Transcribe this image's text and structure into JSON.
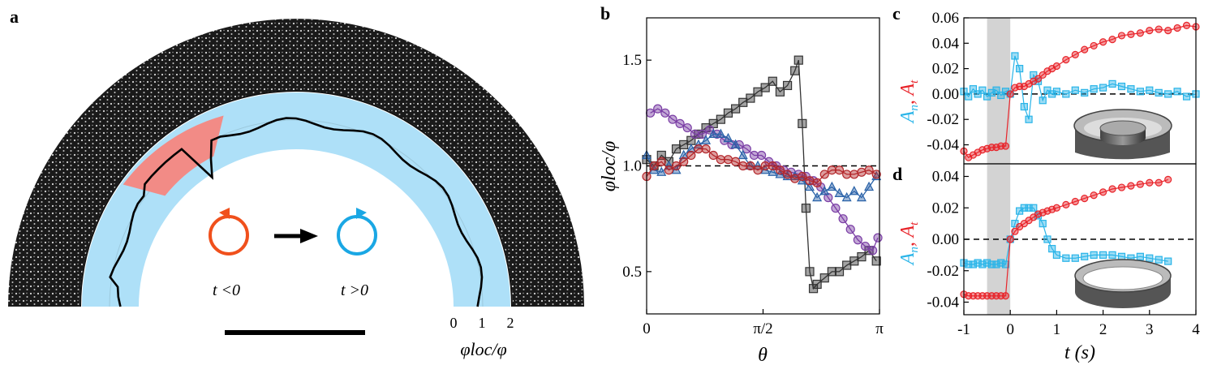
{
  "panel_a": {
    "letter": "a",
    "label_before": "t <0",
    "label_after": "t >0",
    "scale_ticks": [
      "0",
      "1",
      "2"
    ],
    "scale_label": "φloc/φ",
    "colors": {
      "ring_dark": "#111111",
      "band": "#aee0f8",
      "highlight": "#f28b86",
      "ccw": "#f0501c",
      "cw": "#1aa7e4"
    }
  },
  "chart_data": [
    {
      "panel": "b",
      "type": "line",
      "xlabel": "θ",
      "ylabel": "φloc/φ",
      "xlim": [
        0,
        3.1416
      ],
      "ylim": [
        0.3,
        1.7
      ],
      "xticks": [
        {
          "v": 0,
          "label": "0"
        },
        {
          "v": 1.5708,
          "label": "π/2"
        },
        {
          "v": 3.1416,
          "label": "π"
        }
      ],
      "yticks": [
        {
          "v": 0.5,
          "label": "0.5"
        },
        {
          "v": 1.0,
          "label": "1.0"
        },
        {
          "v": 1.5,
          "label": "1.5"
        }
      ],
      "reference_line": 1.0,
      "series": [
        {
          "name": "gray",
          "color": "#333333",
          "marker": "square",
          "x": [
            0,
            0.1,
            0.2,
            0.3,
            0.4,
            0.5,
            0.6,
            0.7,
            0.8,
            0.9,
            1.0,
            1.1,
            1.2,
            1.3,
            1.4,
            1.5,
            1.6,
            1.7,
            1.8,
            1.9,
            2.0,
            2.05,
            2.1,
            2.15,
            2.2,
            2.25,
            2.3,
            2.4,
            2.5,
            2.6,
            2.7,
            2.8,
            2.9,
            3.0,
            3.1
          ],
          "y": [
            1.03,
            1.0,
            1.05,
            1.02,
            1.08,
            1.1,
            1.12,
            1.15,
            1.18,
            1.2,
            1.22,
            1.25,
            1.27,
            1.3,
            1.32,
            1.35,
            1.37,
            1.4,
            1.35,
            1.38,
            1.45,
            1.5,
            1.2,
            0.8,
            0.5,
            0.42,
            0.44,
            0.47,
            0.5,
            0.5,
            0.53,
            0.55,
            0.57,
            0.6,
            0.55
          ]
        },
        {
          "name": "purple",
          "color": "#7b3fa5",
          "marker": "circle",
          "x": [
            0.05,
            0.15,
            0.25,
            0.35,
            0.45,
            0.55,
            0.65,
            0.75,
            0.85,
            0.95,
            1.05,
            1.15,
            1.25,
            1.35,
            1.45,
            1.55,
            1.65,
            1.75,
            1.85,
            1.95,
            2.05,
            2.15,
            2.25,
            2.35,
            2.45,
            2.55,
            2.65,
            2.75,
            2.85,
            2.95,
            3.05,
            3.12
          ],
          "y": [
            1.25,
            1.27,
            1.25,
            1.22,
            1.2,
            1.18,
            1.15,
            1.15,
            1.17,
            1.15,
            1.12,
            1.1,
            1.1,
            1.08,
            1.05,
            1.05,
            1.02,
            1.0,
            0.98,
            0.97,
            0.96,
            0.95,
            0.93,
            0.9,
            0.85,
            0.8,
            0.75,
            0.7,
            0.65,
            0.62,
            0.6,
            0.66
          ]
        },
        {
          "name": "blue",
          "color": "#2a62a8",
          "marker": "triangle",
          "x": [
            0,
            0.1,
            0.2,
            0.3,
            0.4,
            0.5,
            0.6,
            0.7,
            0.8,
            0.9,
            1.0,
            1.1,
            1.2,
            1.3,
            1.4,
            1.5,
            1.6,
            1.7,
            1.8,
            1.9,
            2.0,
            2.1,
            2.2,
            2.3,
            2.4,
            2.5,
            2.6,
            2.7,
            2.8,
            2.9,
            3.0,
            3.1
          ],
          "y": [
            1.05,
            0.98,
            0.97,
            1.0,
            0.98,
            1.05,
            1.08,
            1.1,
            1.12,
            1.15,
            1.15,
            1.13,
            1.1,
            1.05,
            1.0,
            1.0,
            0.98,
            0.97,
            0.96,
            0.95,
            0.95,
            0.93,
            0.9,
            0.85,
            0.88,
            0.9,
            0.87,
            0.85,
            0.88,
            0.85,
            0.9,
            0.95
          ]
        },
        {
          "name": "red",
          "color": "#b3272b",
          "marker": "circle",
          "x": [
            0,
            0.1,
            0.2,
            0.3,
            0.4,
            0.5,
            0.6,
            0.7,
            0.8,
            0.9,
            1.0,
            1.1,
            1.2,
            1.3,
            1.4,
            1.5,
            1.6,
            1.7,
            1.8,
            1.9,
            2.0,
            2.1,
            2.2,
            2.3,
            2.4,
            2.5,
            2.6,
            2.7,
            2.8,
            2.9,
            3.0,
            3.1
          ],
          "y": [
            0.95,
            1.0,
            1.02,
            0.98,
            1.0,
            1.02,
            1.05,
            1.08,
            1.08,
            1.05,
            1.03,
            1.03,
            1.02,
            1.0,
            1.0,
            0.98,
            1.0,
            1.0,
            0.98,
            0.96,
            0.94,
            0.95,
            0.93,
            0.92,
            0.96,
            0.98,
            0.98,
            0.96,
            0.96,
            0.97,
            0.98,
            0.96
          ]
        }
      ]
    },
    {
      "panel": "c",
      "type": "scatter",
      "xlabel": "",
      "ylabel": "An, At",
      "xlim": [
        -1,
        4
      ],
      "ylim": [
        -0.055,
        0.06
      ],
      "xticks": [],
      "yticks": [
        {
          "v": 0.06,
          "label": "0.06"
        },
        {
          "v": 0.04,
          "label": "0.04"
        },
        {
          "v": 0.02,
          "label": "0.02"
        },
        {
          "v": 0.0,
          "label": "0.00"
        },
        {
          "v": -0.02,
          "label": "-0.02"
        },
        {
          "v": -0.04,
          "label": "-0.04"
        }
      ],
      "shaded_region": [
        -0.5,
        0
      ],
      "reference_line": 0.0,
      "series": [
        {
          "name": "An",
          "color": "#29b4e8",
          "marker": "square",
          "x": [
            -1,
            -0.9,
            -0.8,
            -0.7,
            -0.6,
            -0.5,
            -0.4,
            -0.3,
            -0.2,
            -0.1,
            0,
            0.1,
            0.2,
            0.3,
            0.4,
            0.5,
            0.6,
            0.7,
            0.8,
            0.9,
            1.0,
            1.2,
            1.4,
            1.6,
            1.8,
            2.0,
            2.2,
            2.4,
            2.6,
            2.8,
            3.0,
            3.2,
            3.4,
            3.6,
            3.8,
            4.0
          ],
          "y": [
            0.002,
            -0.002,
            0.004,
            0.0,
            0.003,
            -0.002,
            0.001,
            0.003,
            -0.001,
            0.002,
            0.0,
            0.03,
            0.02,
            -0.01,
            -0.02,
            0.015,
            0.01,
            -0.005,
            0.003,
            0.0,
            0.002,
            0.0,
            0.003,
            0.001,
            0.004,
            0.005,
            0.008,
            0.006,
            0.004,
            0.002,
            0.003,
            0.001,
            0.0,
            0.002,
            -0.002,
            0.0
          ]
        },
        {
          "name": "At",
          "color": "#e8242a",
          "marker": "circle",
          "x": [
            -1,
            -0.9,
            -0.8,
            -0.7,
            -0.6,
            -0.5,
            -0.4,
            -0.3,
            -0.2,
            -0.1,
            0,
            0.1,
            0.2,
            0.3,
            0.4,
            0.5,
            0.6,
            0.7,
            0.8,
            0.9,
            1.0,
            1.2,
            1.4,
            1.6,
            1.8,
            2.0,
            2.2,
            2.4,
            2.6,
            2.8,
            3.0,
            3.2,
            3.4,
            3.6,
            3.8,
            4.0
          ],
          "y": [
            -0.045,
            -0.05,
            -0.048,
            -0.046,
            -0.044,
            -0.043,
            -0.042,
            -0.042,
            -0.041,
            -0.041,
            0.0,
            0.005,
            0.006,
            0.006,
            0.008,
            0.01,
            0.012,
            0.015,
            0.018,
            0.02,
            0.022,
            0.027,
            0.031,
            0.035,
            0.038,
            0.041,
            0.043,
            0.046,
            0.047,
            0.048,
            0.05,
            0.051,
            0.05,
            0.052,
            0.054,
            0.053
          ]
        }
      ]
    },
    {
      "panel": "d",
      "type": "scatter",
      "xlabel": "t (s)",
      "ylabel": "An, At",
      "xlim": [
        -1,
        4
      ],
      "ylim": [
        -0.048,
        0.048
      ],
      "xticks": [
        {
          "v": -1,
          "label": "-1"
        },
        {
          "v": 0,
          "label": "0"
        },
        {
          "v": 1,
          "label": "1"
        },
        {
          "v": 2,
          "label": "2"
        },
        {
          "v": 3,
          "label": "3"
        },
        {
          "v": 4,
          "label": "4"
        }
      ],
      "yticks": [
        {
          "v": 0.04,
          "label": "0.04"
        },
        {
          "v": 0.02,
          "label": "0.02"
        },
        {
          "v": 0.0,
          "label": "0.00"
        },
        {
          "v": -0.02,
          "label": "-0.02"
        },
        {
          "v": -0.04,
          "label": "-0.04"
        }
      ],
      "shaded_region": [
        -0.5,
        0
      ],
      "reference_line": 0.0,
      "series": [
        {
          "name": "An",
          "color": "#29b4e8",
          "marker": "square",
          "x": [
            -1,
            -0.9,
            -0.8,
            -0.7,
            -0.6,
            -0.5,
            -0.4,
            -0.3,
            -0.2,
            -0.1,
            0,
            0.1,
            0.2,
            0.3,
            0.4,
            0.5,
            0.6,
            0.7,
            0.8,
            0.9,
            1.0,
            1.2,
            1.4,
            1.6,
            1.8,
            2.0,
            2.2,
            2.4,
            2.6,
            2.8,
            3.0,
            3.2,
            3.4
          ],
          "y": [
            -0.015,
            -0.016,
            -0.016,
            -0.015,
            -0.016,
            -0.015,
            -0.016,
            -0.016,
            -0.015,
            -0.016,
            0.0,
            0.01,
            0.018,
            0.02,
            0.02,
            0.02,
            0.015,
            0.01,
            0.0,
            -0.006,
            -0.01,
            -0.012,
            -0.012,
            -0.011,
            -0.01,
            -0.01,
            -0.01,
            -0.011,
            -0.012,
            -0.011,
            -0.012,
            -0.013,
            -0.014
          ]
        },
        {
          "name": "At",
          "color": "#e8242a",
          "marker": "circle",
          "x": [
            -1,
            -0.9,
            -0.8,
            -0.7,
            -0.6,
            -0.5,
            -0.4,
            -0.3,
            -0.2,
            -0.1,
            0,
            0.1,
            0.2,
            0.3,
            0.4,
            0.5,
            0.6,
            0.7,
            0.8,
            0.9,
            1.0,
            1.2,
            1.4,
            1.6,
            1.8,
            2.0,
            2.2,
            2.4,
            2.6,
            2.8,
            3.0,
            3.2,
            3.4
          ],
          "y": [
            -0.035,
            -0.036,
            -0.036,
            -0.036,
            -0.036,
            -0.036,
            -0.036,
            -0.036,
            -0.036,
            -0.036,
            0.0,
            0.005,
            0.008,
            0.01,
            0.012,
            0.014,
            0.016,
            0.017,
            0.018,
            0.019,
            0.02,
            0.022,
            0.024,
            0.026,
            0.028,
            0.03,
            0.032,
            0.033,
            0.034,
            0.035,
            0.036,
            0.036,
            0.038
          ]
        }
      ]
    }
  ]
}
